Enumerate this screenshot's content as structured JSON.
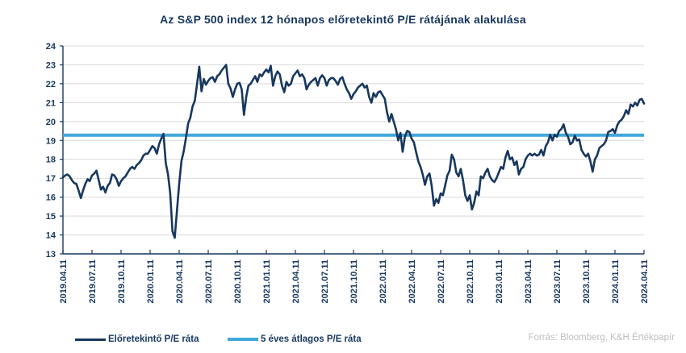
{
  "title": "Az S&P 500 index 12 hónapos előretekintő P/E rátájának alakulása",
  "source": "Forrás: Bloomberg, K&H Értékpapír",
  "colors": {
    "navy": "#17375E",
    "light_blue": "#41A8DB",
    "gridline": "#D9D9D9",
    "source_text": "#BFBFBF",
    "background": "#FFFFFF"
  },
  "legend": [
    {
      "label": "Előretekintő P/E ráta",
      "color": "#17375E"
    },
    {
      "label": "5 éves átlagos P/E ráta",
      "color": "#41A8DB"
    }
  ],
  "chart_data": {
    "type": "line",
    "title": "Az S&P 500 index 12 hónapos előretekintő P/E rátájának alakulása",
    "xlabel": "",
    "ylabel": "",
    "ylim": [
      13,
      24
    ],
    "ytick_step": 1,
    "grid": "horizontal",
    "legend_position": "bottom",
    "x_tick_labels": [
      "2019.04.11",
      "2019.07.11",
      "2019.10.11",
      "2020.01.11",
      "2020.04.11",
      "2020.07.11",
      "2020.10.11",
      "2021.01.11",
      "2021.04.11",
      "2021.07.11",
      "2021.10.11",
      "2022.01.11",
      "2022.04.11",
      "2022.07.11",
      "2022.10.11",
      "2023.01.11",
      "2023.04.11",
      "2023.07.11",
      "2023.10.11",
      "2024.01.11",
      "2024.04.11"
    ],
    "series": [
      {
        "name": "Előretekintő P/E ráta",
        "color": "#17375E",
        "type": "weekly_line",
        "values": [
          17.05,
          17.15,
          17.2,
          17.1,
          16.9,
          16.75,
          16.7,
          16.35,
          15.95,
          16.35,
          16.7,
          16.95,
          16.85,
          17.15,
          17.25,
          17.4,
          16.9,
          16.4,
          16.55,
          16.25,
          16.6,
          16.75,
          17.2,
          17.15,
          16.95,
          16.6,
          16.85,
          17.0,
          17.1,
          17.3,
          17.5,
          17.6,
          17.5,
          17.7,
          17.8,
          17.95,
          18.2,
          18.3,
          18.3,
          18.5,
          18.7,
          18.6,
          18.3,
          18.8,
          19.1,
          19.35,
          17.8,
          17.2,
          16.2,
          14.2,
          13.85,
          15.25,
          16.7,
          17.9,
          18.4,
          19.1,
          19.9,
          20.2,
          20.8,
          21.1,
          22.0,
          22.9,
          21.6,
          22.25,
          21.95,
          22.15,
          22.3,
          22.35,
          22.1,
          22.4,
          22.5,
          22.7,
          22.85,
          23.0,
          22.0,
          21.75,
          21.3,
          21.7,
          22.0,
          22.05,
          21.7,
          20.35,
          21.3,
          21.9,
          22.0,
          22.2,
          22.4,
          22.1,
          22.5,
          22.4,
          22.6,
          22.75,
          22.6,
          22.95,
          21.9,
          22.4,
          22.65,
          22.5,
          21.9,
          21.55,
          22.1,
          21.9,
          22.0,
          22.4,
          22.55,
          22.7,
          22.4,
          22.5,
          22.3,
          21.7,
          21.95,
          22.1,
          22.2,
          22.3,
          21.9,
          22.3,
          22.45,
          22.3,
          21.9,
          22.2,
          22.3,
          22.3,
          22.15,
          21.95,
          22.25,
          22.35,
          22.0,
          21.7,
          21.5,
          21.2,
          21.45,
          21.6,
          21.8,
          21.9,
          22.0,
          21.8,
          21.9,
          21.3,
          21.0,
          21.5,
          21.3,
          21.55,
          21.6,
          21.4,
          21.2,
          20.5,
          20.0,
          20.4,
          20.0,
          19.6,
          19.0,
          19.4,
          18.4,
          19.2,
          19.5,
          19.45,
          19.1,
          18.9,
          18.4,
          17.9,
          17.6,
          17.2,
          16.65,
          17.1,
          17.25,
          16.6,
          15.55,
          15.9,
          15.7,
          16.2,
          16.1,
          16.6,
          17.15,
          17.4,
          18.25,
          18.0,
          17.3,
          17.1,
          17.5,
          16.9,
          16.1,
          15.8,
          16.1,
          15.35,
          15.7,
          16.3,
          16.1,
          17.1,
          17.0,
          17.3,
          17.5,
          17.1,
          16.9,
          16.8,
          17.0,
          17.3,
          17.6,
          17.5,
          18.1,
          18.45,
          18.0,
          18.1,
          17.7,
          17.9,
          17.2,
          17.5,
          17.6,
          18.0,
          18.2,
          18.3,
          18.2,
          18.3,
          18.2,
          18.25,
          18.5,
          18.2,
          18.7,
          18.9,
          19.3,
          19.0,
          19.3,
          19.2,
          19.5,
          19.6,
          19.85,
          19.4,
          19.2,
          18.8,
          18.9,
          19.25,
          19.0,
          19.05,
          18.5,
          18.3,
          18.15,
          18.3,
          17.9,
          17.35,
          18.0,
          18.2,
          18.6,
          18.7,
          18.8,
          19.0,
          19.45,
          19.5,
          19.6,
          19.4,
          19.8,
          20.0,
          20.1,
          20.3,
          20.6,
          20.4,
          20.9,
          20.8,
          21.0,
          20.85,
          21.15,
          21.2,
          20.95
        ]
      },
      {
        "name": "5 éves átlagos P/E ráta",
        "color": "#41A8DB",
        "type": "constant",
        "value": 19.28
      }
    ]
  }
}
